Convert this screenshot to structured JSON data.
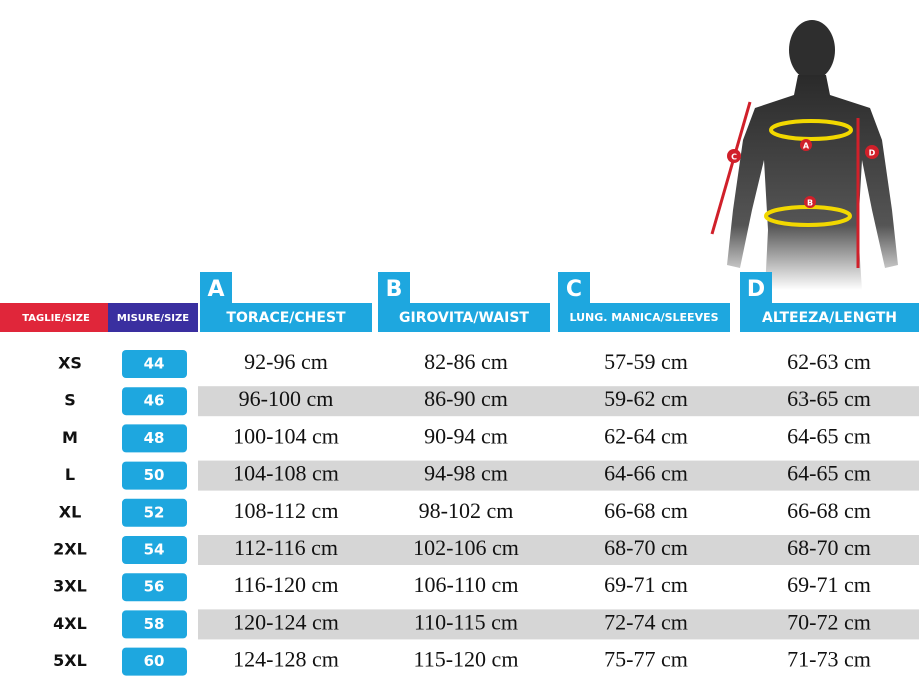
{
  "headers": {
    "size": "TAGLIE/SIZE",
    "measure": "MISURE/SIZE",
    "columns": [
      {
        "letter": "A",
        "label": "TORACE/CHEST"
      },
      {
        "letter": "B",
        "label": "GIROVITA/WAIST"
      },
      {
        "letter": "C",
        "label": "LUNG. MANICA/SLEEVES"
      },
      {
        "letter": "D",
        "label": "ALTEEZA/LENGTH"
      }
    ]
  },
  "figure": {
    "labels": [
      "A",
      "B",
      "C",
      "D"
    ]
  },
  "table": {
    "rows": [
      [
        "XS",
        "44",
        "92-96 cm",
        "82-86 cm",
        "57-59 cm",
        "62-63 cm"
      ],
      [
        "S",
        "46",
        "96-100 cm",
        "86-90 cm",
        "59-62 cm",
        "63-65 cm"
      ],
      [
        "M",
        "48",
        "100-104 cm",
        "90-94 cm",
        "62-64 cm",
        "64-65 cm"
      ],
      [
        "L",
        "50",
        "104-108 cm",
        "94-98 cm",
        "64-66 cm",
        "64-65 cm"
      ],
      [
        "XL",
        "52",
        "108-112 cm",
        "98-102 cm",
        "66-68 cm",
        "66-68 cm"
      ],
      [
        "2XL",
        "54",
        "112-116 cm",
        "102-106 cm",
        "68-70 cm",
        "68-70 cm"
      ],
      [
        "3XL",
        "56",
        "116-120 cm",
        "106-110 cm",
        "69-71 cm",
        "69-71 cm"
      ],
      [
        "4XL",
        "58",
        "120-124 cm",
        "110-115 cm",
        "72-74 cm",
        "70-72 cm"
      ],
      [
        "5XL",
        "60",
        "124-128 cm",
        "115-120 cm",
        "75-77 cm",
        "71-73 cm"
      ]
    ]
  }
}
